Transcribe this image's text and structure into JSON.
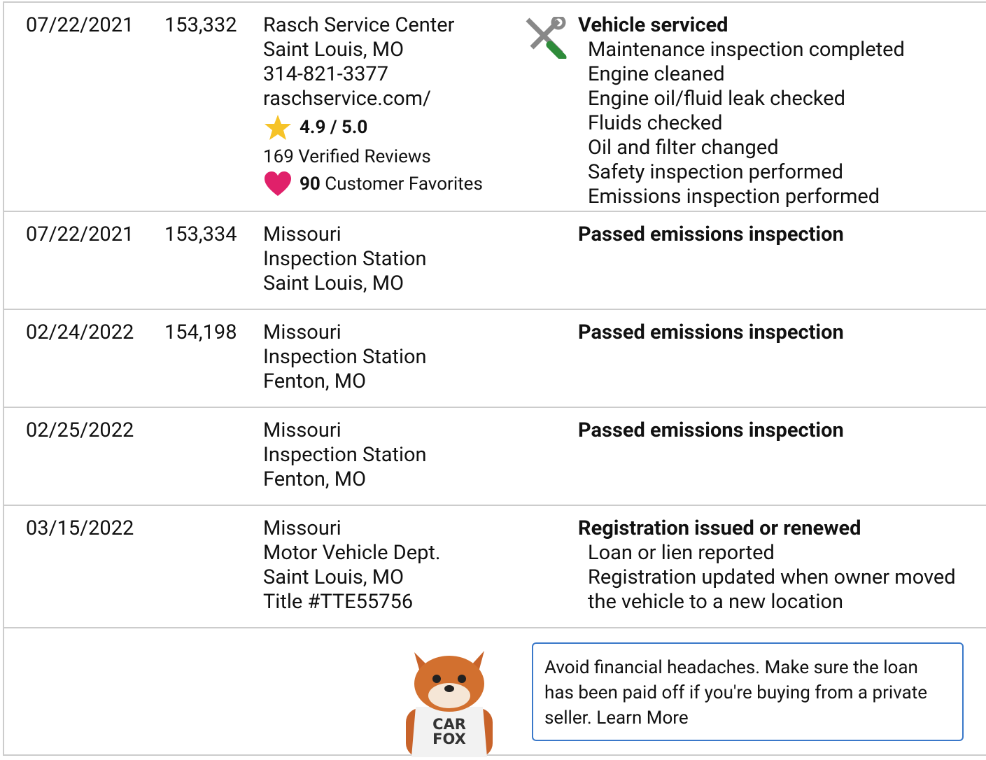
{
  "records": [
    {
      "date": "07/22/2021",
      "mileage": "153,332",
      "source": [
        "Rasch Service Center",
        "Saint Louis, MO",
        "314-821-3377",
        "raschservice.com/"
      ],
      "rating": "4.9 / 5.0",
      "reviews": "169 Verified Reviews",
      "favorites_count": "90",
      "favorites_label": "Customer Favorites",
      "comment_title": "Vehicle serviced",
      "comments": [
        "Maintenance inspection completed",
        "Engine cleaned",
        "Engine oil/fluid leak checked",
        "Fluids checked",
        "Oil and filter changed",
        "Safety inspection performed",
        "Emissions inspection performed"
      ]
    },
    {
      "date": "07/22/2021",
      "mileage": "153,334",
      "source": [
        "Missouri",
        "Inspection Station",
        "Saint Louis, MO"
      ],
      "comment_title": "Passed emissions inspection"
    },
    {
      "date": "02/24/2022",
      "mileage": "154,198",
      "source": [
        "Missouri",
        "Inspection Station",
        "Fenton, MO"
      ],
      "comment_title": "Passed emissions inspection"
    },
    {
      "date": "02/25/2022",
      "source": [
        "Missouri",
        "Inspection Station",
        "Fenton, MO"
      ],
      "comment_title": "Passed emissions inspection"
    },
    {
      "date": "03/15/2022",
      "source": [
        "Missouri",
        "Motor Vehicle Dept.",
        "Saint Louis, MO",
        "Title #TTE55756"
      ],
      "comment_title": "Registration issued or renewed",
      "comments": [
        "Loan or lien reported",
        "Registration updated when owner moved the vehicle to a new location"
      ]
    }
  ],
  "tip": {
    "text": "Avoid financial headaches. Make sure the loan has been paid off if you're buying from a private seller.",
    "link": "Learn More"
  },
  "mascot_shirt": [
    "CAR",
    "FOX"
  ]
}
